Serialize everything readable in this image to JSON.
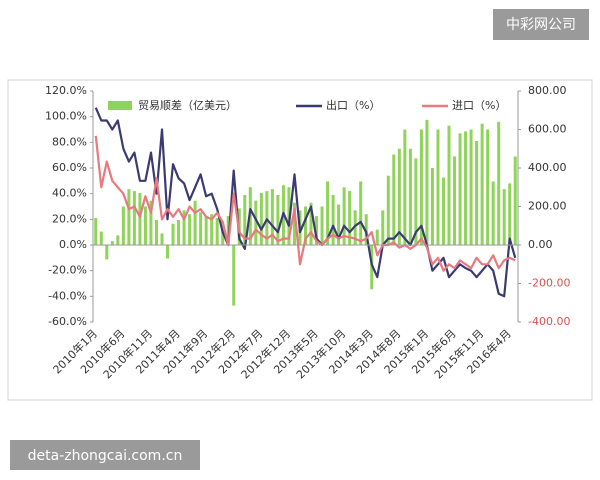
{
  "watermark_top": "中彩网公司",
  "watermark_bottom": "deta-zhongcai.com.cn",
  "chart_data": {
    "type": "bar-line",
    "categories": [
      "2010年1月",
      null,
      null,
      null,
      null,
      "2010年6月",
      null,
      null,
      null,
      null,
      "2010年11月",
      null,
      null,
      null,
      null,
      "2011年4月",
      null,
      null,
      null,
      null,
      "2011年9月",
      null,
      null,
      null,
      null,
      "2012年2月",
      null,
      null,
      null,
      null,
      "2012年7月",
      null,
      null,
      null,
      null,
      "2012年12月",
      null,
      null,
      null,
      null,
      "2013年5月",
      null,
      null,
      null,
      null,
      "2013年10月",
      null,
      null,
      null,
      null,
      "2014年3月",
      null,
      null,
      null,
      null,
      "2014年8月",
      null,
      null,
      null,
      null,
      "2015年1月",
      null,
      null,
      null,
      null,
      "2015年6月",
      null,
      null,
      null,
      null,
      "2015年11月",
      null,
      null,
      null,
      null,
      "2016年4月",
      null
    ],
    "series": [
      {
        "name": "贸易顺差（亿美元）",
        "kind": "bar",
        "axis": "y2",
        "color": "#8fd35a",
        "values": [
          140,
          70,
          -75,
          20,
          50,
          200,
          290,
          280,
          270,
          200,
          230,
          130,
          60,
          -70,
          110,
          130,
          180,
          160,
          230,
          170,
          150,
          160,
          140,
          80,
          150,
          -315,
          190,
          260,
          300,
          230,
          270,
          280,
          290,
          260,
          310,
          300,
          220,
          180,
          200,
          220,
          150,
          200,
          330,
          260,
          210,
          300,
          280,
          180,
          330,
          160,
          -230,
          80,
          180,
          360,
          470,
          500,
          600,
          500,
          450,
          600,
          650,
          400,
          600,
          350,
          620,
          460,
          580,
          590,
          600,
          540,
          630,
          600,
          330,
          640,
          290,
          320,
          460
        ]
      },
      {
        "name": "出口（%）",
        "kind": "line",
        "color": "#3b3a72",
        "values": [
          107,
          97,
          97,
          90,
          97,
          75,
          65,
          72,
          50,
          50,
          72,
          40,
          90,
          20,
          63,
          52,
          48,
          35,
          45,
          55,
          38,
          40,
          28,
          10,
          0,
          58,
          5,
          -3,
          28,
          20,
          12,
          20,
          15,
          10,
          25,
          15,
          55,
          10,
          20,
          30,
          5,
          0,
          5,
          15,
          5,
          15,
          10,
          15,
          18,
          10,
          -15,
          -25,
          0,
          5,
          5,
          10,
          5,
          0,
          10,
          15,
          0,
          -20,
          -15,
          -10,
          -25,
          -20,
          -15,
          -18,
          -20,
          -25,
          -20,
          -15,
          -20,
          -38,
          -40,
          5,
          -10
        ]
      },
      {
        "name": "进口（%）",
        "kind": "line",
        "color": "#e8797c",
        "values": [
          85,
          45,
          65,
          50,
          45,
          40,
          28,
          30,
          22,
          38,
          25,
          52,
          20,
          28,
          22,
          28,
          20,
          30,
          25,
          28,
          22,
          20,
          25,
          18,
          0,
          40,
          10,
          5,
          5,
          12,
          8,
          5,
          8,
          3,
          5,
          5,
          28,
          -15,
          5,
          10,
          3,
          0,
          5,
          8,
          5,
          7,
          6,
          5,
          3,
          5,
          10,
          -8,
          0,
          0,
          2,
          -2,
          0,
          -3,
          0,
          5,
          -2,
          -15,
          -10,
          -20,
          -15,
          -18,
          -12,
          -15,
          -18,
          -10,
          -15,
          -15,
          -8,
          -18,
          -12,
          -10,
          -12
        ]
      }
    ],
    "ylim": [
      -60,
      120
    ],
    "yticks": [
      {
        "value": -60,
        "label": "-60.0%"
      },
      {
        "value": -40,
        "label": "-40.0%"
      },
      {
        "value": -20,
        "label": "-20.0%"
      },
      {
        "value": 0,
        "label": "0.0%"
      },
      {
        "value": 20,
        "label": "20.0%"
      },
      {
        "value": 40,
        "label": "40.0%"
      },
      {
        "value": 60,
        "label": "60.0%"
      },
      {
        "value": 80,
        "label": "80.0%"
      },
      {
        "value": 100,
        "label": "100.0%"
      },
      {
        "value": 120,
        "label": "120.0%"
      }
    ],
    "y2lim": [
      -400,
      800
    ],
    "y2ticks": [
      {
        "value": -400,
        "label": "-400.00"
      },
      {
        "value": -200,
        "label": "-200.00"
      },
      {
        "value": 0,
        "label": "0.00"
      },
      {
        "value": 200,
        "label": "200.00"
      },
      {
        "value": 400,
        "label": "400.00"
      },
      {
        "value": 600,
        "label": "600.00"
      },
      {
        "value": 800,
        "label": "800.00"
      }
    ],
    "y2_negative_color": "#d9534f",
    "legend": "top"
  }
}
